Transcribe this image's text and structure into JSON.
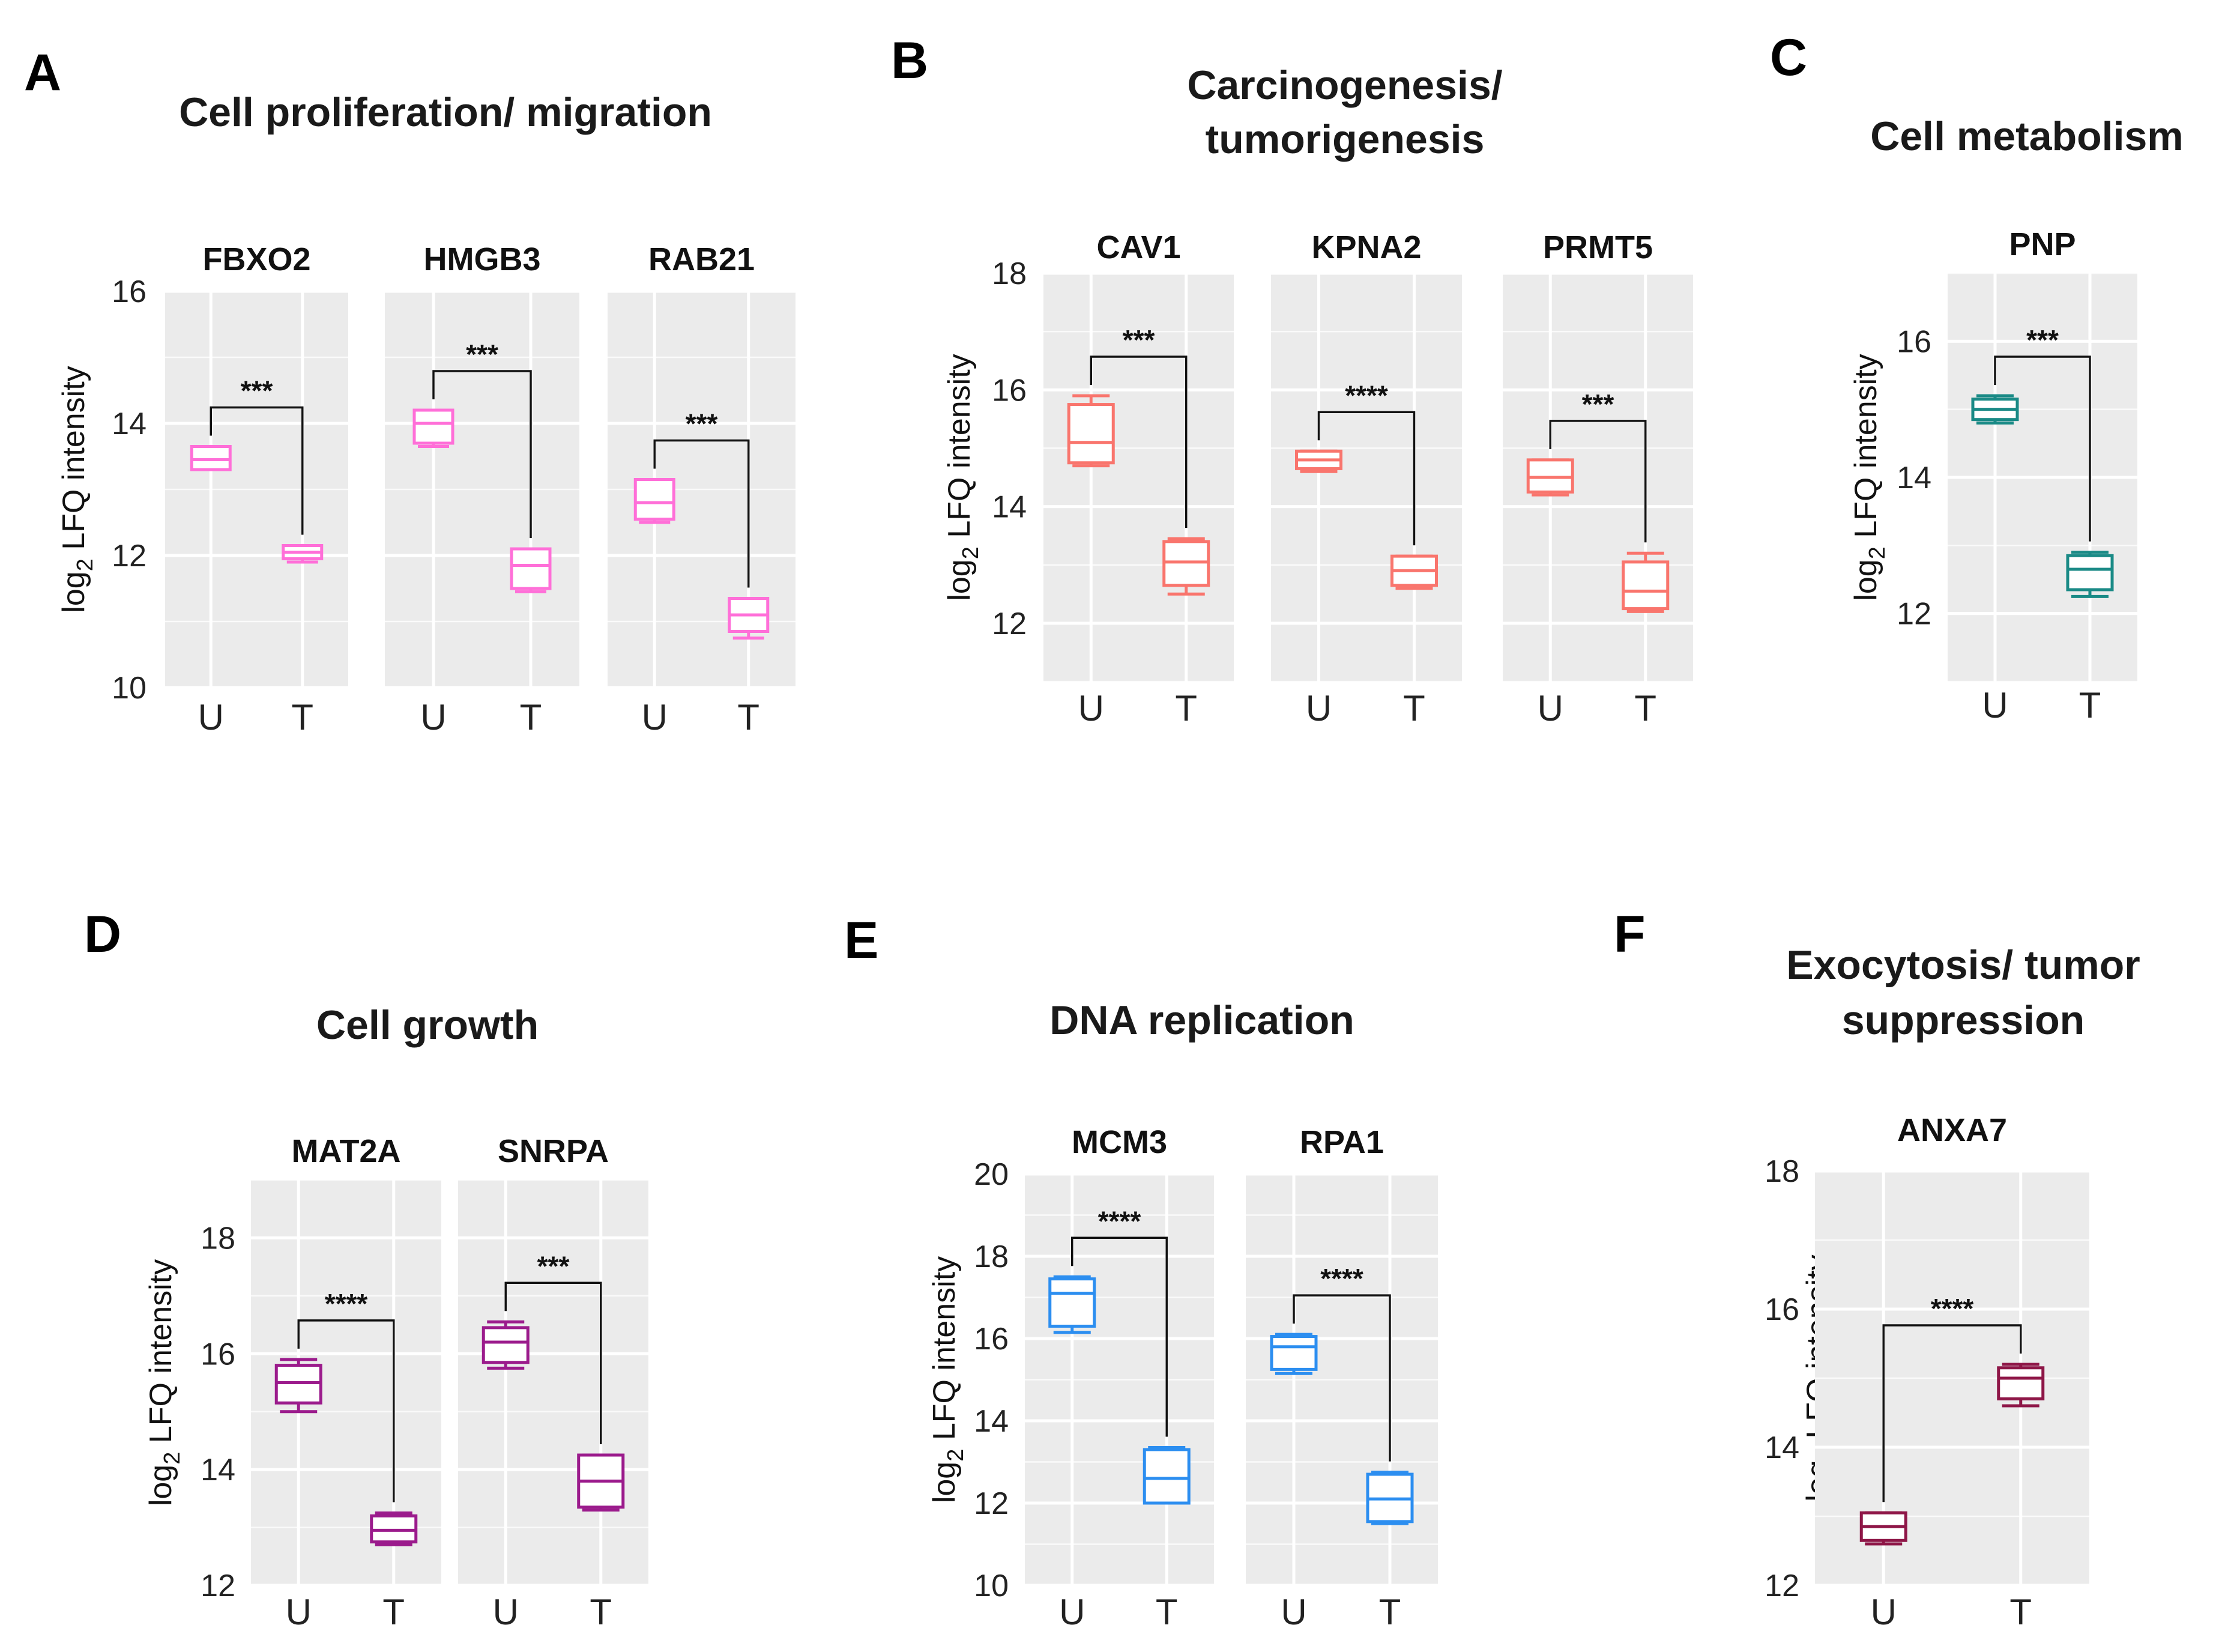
{
  "figure": {
    "ylabel_prefix": "log",
    "ylabel_sub": "2",
    "ylabel_suffix": " LFQ intensity"
  },
  "chart_data": [
    {
      "panel": "A",
      "type": "boxplot",
      "title": [
        "Cell proliferation/ migration"
      ],
      "color": "#FF6FD8",
      "ylim": [
        10,
        16
      ],
      "yticks": [
        10,
        12,
        14,
        16
      ],
      "ylabel": "log2 LFQ intensity",
      "categories": [
        "U",
        "T"
      ],
      "genes": [
        {
          "name": "FBXO2",
          "significance": "***",
          "U": {
            "min": 13.3,
            "q1": 13.3,
            "median": 13.45,
            "q3": 13.65,
            "max": 13.65
          },
          "T": {
            "min": 11.9,
            "q1": 11.95,
            "median": 12.05,
            "q3": 12.15,
            "max": 12.15
          }
        },
        {
          "name": "HMGB3",
          "significance": "***",
          "U": {
            "min": 13.65,
            "q1": 13.7,
            "median": 14.0,
            "q3": 14.2,
            "max": 14.2
          },
          "T": {
            "min": 11.45,
            "q1": 11.5,
            "median": 11.85,
            "q3": 12.1,
            "max": 12.1
          }
        },
        {
          "name": "RAB21",
          "significance": "***",
          "U": {
            "min": 12.5,
            "q1": 12.55,
            "median": 12.8,
            "q3": 13.15,
            "max": 13.15
          },
          "T": {
            "min": 10.75,
            "q1": 10.85,
            "median": 11.1,
            "q3": 11.35,
            "max": 11.35
          }
        }
      ]
    },
    {
      "panel": "B",
      "type": "boxplot",
      "title": [
        "Carcinogenesis/",
        "tumorigenesis"
      ],
      "color": "#F9756D",
      "ylim": [
        11,
        18
      ],
      "yticks": [
        12,
        14,
        16,
        18
      ],
      "ylabel": "log2 LFQ intensity",
      "categories": [
        "U",
        "T"
      ],
      "genes": [
        {
          "name": "CAV1",
          "significance": "***",
          "U": {
            "min": 14.7,
            "q1": 14.75,
            "median": 15.1,
            "q3": 15.75,
            "max": 15.9
          },
          "T": {
            "min": 12.5,
            "q1": 12.65,
            "median": 13.05,
            "q3": 13.4,
            "max": 13.45
          }
        },
        {
          "name": "KPNA2",
          "significance": "****",
          "U": {
            "min": 14.6,
            "q1": 14.65,
            "median": 14.8,
            "q3": 14.95,
            "max": 14.95
          },
          "T": {
            "min": 12.6,
            "q1": 12.65,
            "median": 12.9,
            "q3": 13.15,
            "max": 13.15
          }
        },
        {
          "name": "PRMT5",
          "significance": "***",
          "U": {
            "min": 14.2,
            "q1": 14.25,
            "median": 14.5,
            "q3": 14.8,
            "max": 14.8
          },
          "T": {
            "min": 12.2,
            "q1": 12.25,
            "median": 12.55,
            "q3": 13.05,
            "max": 13.2
          }
        }
      ]
    },
    {
      "panel": "C",
      "type": "boxplot",
      "title": [
        "Cell metabolism"
      ],
      "color": "#1A8A86",
      "ylim": [
        11,
        17
      ],
      "yticks": [
        12,
        14,
        16
      ],
      "ylabel": "log2 LFQ intensity",
      "categories": [
        "U",
        "T"
      ],
      "genes": [
        {
          "name": "PNP",
          "significance": "***",
          "U": {
            "min": 14.8,
            "q1": 14.85,
            "median": 15.0,
            "q3": 15.15,
            "max": 15.2
          },
          "T": {
            "min": 12.25,
            "q1": 12.35,
            "median": 12.65,
            "q3": 12.85,
            "max": 12.9
          }
        }
      ]
    },
    {
      "panel": "D",
      "type": "boxplot",
      "title": [
        "Cell growth"
      ],
      "color": "#9B1B8C",
      "ylim": [
        12,
        19
      ],
      "yticks": [
        12,
        14,
        16,
        18
      ],
      "ylabel": "log2 LFQ intensity",
      "categories": [
        "U",
        "T"
      ],
      "genes": [
        {
          "name": "MAT2A",
          "significance": "****",
          "U": {
            "min": 15.0,
            "q1": 15.15,
            "median": 15.5,
            "q3": 15.8,
            "max": 15.9
          },
          "T": {
            "min": 12.7,
            "q1": 12.75,
            "median": 12.95,
            "q3": 13.2,
            "max": 13.25
          }
        },
        {
          "name": "SNRPA",
          "significance": "***",
          "U": {
            "min": 15.75,
            "q1": 15.85,
            "median": 16.2,
            "q3": 16.45,
            "max": 16.55
          },
          "T": {
            "min": 13.3,
            "q1": 13.35,
            "median": 13.8,
            "q3": 14.25,
            "max": 14.25
          }
        }
      ]
    },
    {
      "panel": "E",
      "type": "boxplot",
      "title": [
        "DNA replication"
      ],
      "color": "#2C8EF0",
      "ylim": [
        10,
        20
      ],
      "yticks": [
        10,
        12,
        14,
        16,
        18,
        20
      ],
      "ylabel": "log2 LFQ intensity",
      "categories": [
        "U",
        "T"
      ],
      "genes": [
        {
          "name": "MCM3",
          "significance": "****",
          "U": {
            "min": 16.15,
            "q1": 16.3,
            "median": 17.1,
            "q3": 17.45,
            "max": 17.5
          },
          "T": {
            "min": 12.0,
            "q1": 12.0,
            "median": 12.6,
            "q3": 13.3,
            "max": 13.35
          }
        },
        {
          "name": "RPA1",
          "significance": "****",
          "U": {
            "min": 15.15,
            "q1": 15.25,
            "median": 15.8,
            "q3": 16.05,
            "max": 16.1
          },
          "T": {
            "min": 11.5,
            "q1": 11.55,
            "median": 12.1,
            "q3": 12.7,
            "max": 12.75
          }
        }
      ]
    },
    {
      "panel": "F",
      "type": "boxplot",
      "title": [
        "Exocytosis/ tumor",
        "suppression"
      ],
      "color": "#8E1647",
      "ylim": [
        12,
        18
      ],
      "yticks": [
        12,
        14,
        16,
        18
      ],
      "ylabel": "log2 LFQ intensity",
      "categories": [
        "U",
        "T"
      ],
      "genes": [
        {
          "name": "ANXA7",
          "significance": "****",
          "U": {
            "min": 12.6,
            "q1": 12.65,
            "median": 12.85,
            "q3": 13.05,
            "max": 13.05
          },
          "T": {
            "min": 14.6,
            "q1": 14.7,
            "median": 15.0,
            "q3": 15.15,
            "max": 15.2
          }
        }
      ]
    }
  ]
}
